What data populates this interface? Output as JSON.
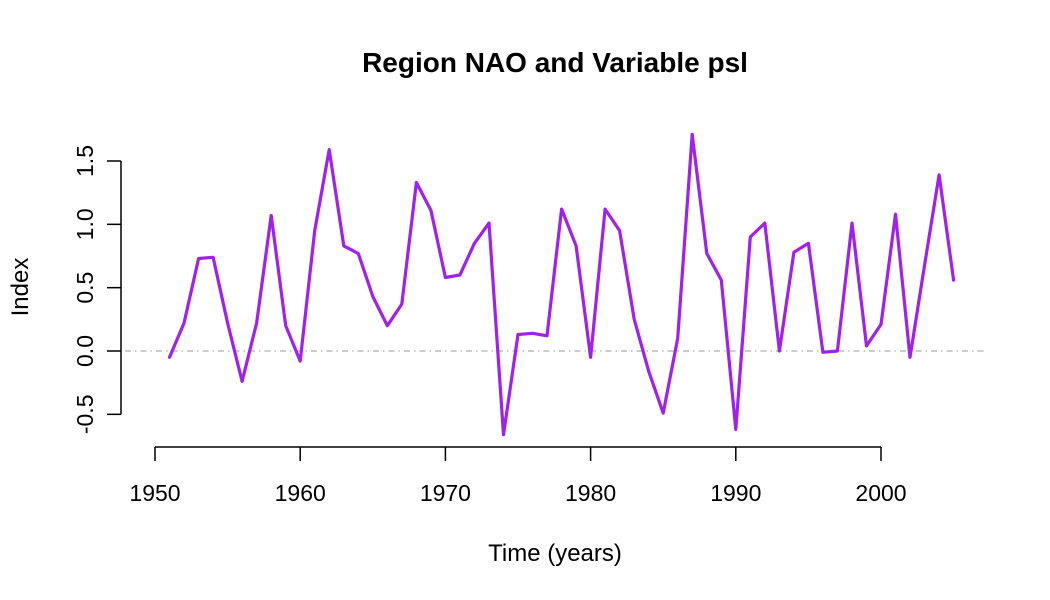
{
  "chart_data": {
    "type": "line",
    "title": "Region NAO and Variable psl",
    "xlabel": "Time (years)",
    "ylabel": "Index",
    "xlim": [
      1948,
      2007
    ],
    "ylim": [
      -0.65,
      1.7
    ],
    "x_ticks": [
      1950,
      1960,
      1970,
      1980,
      1990,
      2000
    ],
    "x_tick_labels": [
      "1950",
      "1960",
      "1970",
      "1980",
      "1990",
      "2000"
    ],
    "y_ticks": [
      -0.5,
      0.0,
      0.5,
      1.0,
      1.5
    ],
    "y_tick_labels": [
      "-0.5",
      "0.0",
      "0.5",
      "1.0",
      "1.5"
    ],
    "reference_line": {
      "y": 0,
      "style": "dot-dash",
      "color": "#bbbbbb"
    },
    "grid": false,
    "series": [
      {
        "color": "#a020f0",
        "x": [
          1951,
          1952,
          1953,
          1954,
          1955,
          1956,
          1957,
          1958,
          1959,
          1960,
          1961,
          1962,
          1963,
          1964,
          1965,
          1966,
          1967,
          1968,
          1969,
          1970,
          1971,
          1972,
          1973,
          1974,
          1975,
          1976,
          1977,
          1978,
          1979,
          1980,
          1981,
          1982,
          1983,
          1984,
          1985,
          1986,
          1987,
          1988,
          1989,
          1990,
          1991,
          1992,
          1993,
          1994,
          1995,
          1996,
          1997,
          1998,
          1999,
          2000,
          2001,
          2002,
          2003,
          2004,
          2005
        ],
        "values": [
          -0.05,
          0.22,
          0.73,
          0.74,
          0.22,
          -0.24,
          0.22,
          1.07,
          0.2,
          -0.08,
          0.95,
          1.59,
          0.83,
          0.77,
          0.43,
          0.2,
          0.37,
          1.33,
          1.11,
          0.58,
          0.6,
          0.85,
          1.01,
          -0.66,
          0.13,
          0.14,
          0.12,
          1.12,
          0.83,
          -0.05,
          1.12,
          0.95,
          0.25,
          -0.16,
          -0.49,
          0.1,
          1.71,
          0.77,
          0.56,
          -0.62,
          0.9,
          1.01,
          0.0,
          0.78,
          0.85,
          -0.01,
          0.0,
          1.01,
          0.04,
          0.21,
          1.08,
          -0.05,
          0.68,
          1.39,
          0.56
        ]
      }
    ]
  }
}
